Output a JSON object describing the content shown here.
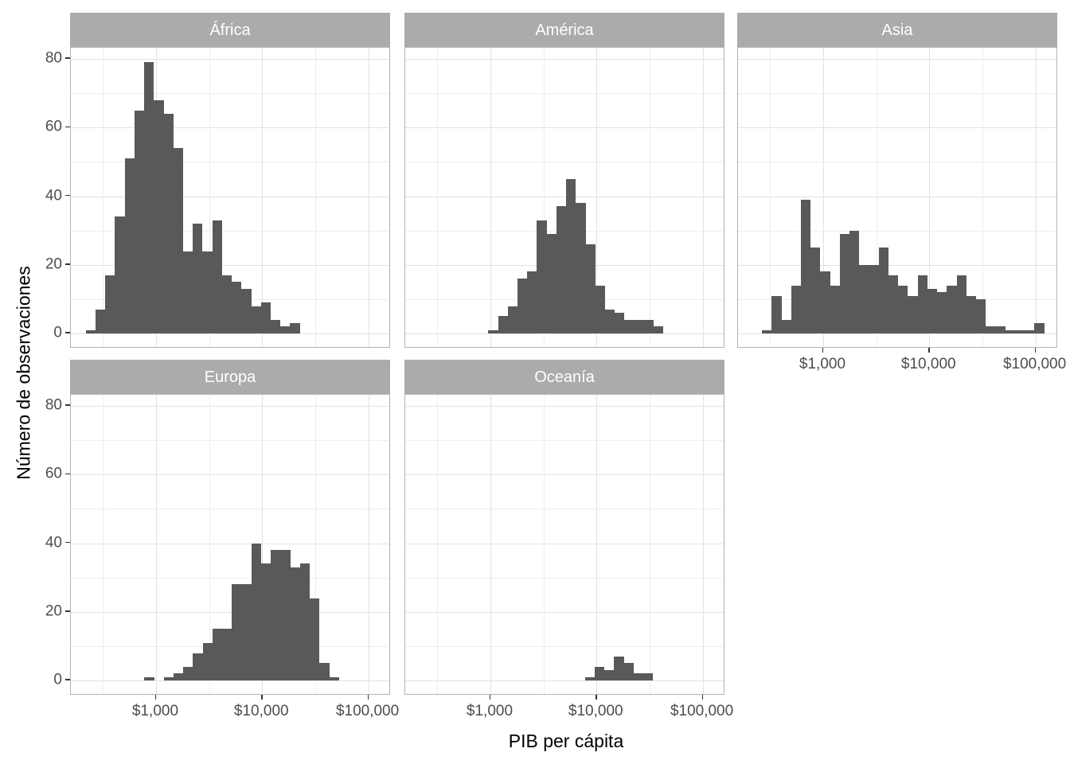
{
  "chart_data": {
    "type": "bar",
    "subtype": "faceted-histogram",
    "title": "",
    "xlabel": "PIB per cápita",
    "ylabel": "Número de observaciones",
    "x_scale": "log10",
    "xlim_log10": [
      2.1974,
      5.2133
    ],
    "ylim": [
      0,
      83.3
    ],
    "grid": "on",
    "legend": "none",
    "x_ticks": [
      {
        "value": 1000,
        "log10": 3,
        "label": "$1,000"
      },
      {
        "value": 10000,
        "log10": 4,
        "label": "$10,000"
      },
      {
        "value": 100000,
        "log10": 5,
        "label": "$100,000"
      }
    ],
    "x_minor_log10": [
      2.5,
      3.5,
      4.5
    ],
    "y_ticks": [
      {
        "value": 0,
        "label": "0"
      },
      {
        "value": 20,
        "label": "20"
      },
      {
        "value": 40,
        "label": "40"
      },
      {
        "value": 60,
        "label": "60"
      },
      {
        "value": 80,
        "label": "80"
      }
    ],
    "y_minor": [
      10,
      30,
      50,
      70
    ],
    "bin_width_log10": 0.0917,
    "facets": [
      {
        "label": "África",
        "start_log10": 2.338,
        "counts": [
          1,
          7,
          17,
          34,
          51,
          65,
          79,
          68,
          64,
          54,
          24,
          32,
          24,
          33,
          17,
          15,
          13,
          8,
          9,
          4,
          2,
          3
        ]
      },
      {
        "label": "América",
        "start_log10": 2.98,
        "counts": [
          1,
          5,
          8,
          16,
          18,
          33,
          29,
          37,
          45,
          38,
          26,
          14,
          7,
          6,
          4,
          4,
          4,
          2
        ]
      },
      {
        "label": "Asia",
        "start_log10": 2.423,
        "counts": [
          1,
          11,
          4,
          14,
          39,
          25,
          18,
          14,
          29,
          30,
          20,
          20,
          25,
          17,
          14,
          11,
          17,
          13,
          12,
          14,
          17,
          11,
          10,
          2,
          2,
          1,
          1,
          1,
          3
        ]
      },
      {
        "label": "Europa",
        "start_log10": 2.89,
        "counts": [
          1,
          0,
          1,
          2,
          4,
          8,
          11,
          15,
          15,
          28,
          28,
          40,
          34,
          38,
          38,
          33,
          34,
          24,
          5,
          1
        ]
      },
      {
        "label": "Oceanía",
        "start_log10": 3.891,
        "counts": [
          1,
          4,
          3,
          7,
          5,
          2,
          2
        ]
      }
    ],
    "colors": {
      "bar": "#595959",
      "strip_background": "#ababab",
      "strip_text": "#ffffff",
      "panel_background": "#ffffff",
      "panel_border": "#b3b3b3",
      "grid_major": "#e2e2e2",
      "grid_minor": "#ededed",
      "axis_text": "#4d4d4d",
      "axis_title": "#000000",
      "tick_mark": "#333333"
    }
  }
}
